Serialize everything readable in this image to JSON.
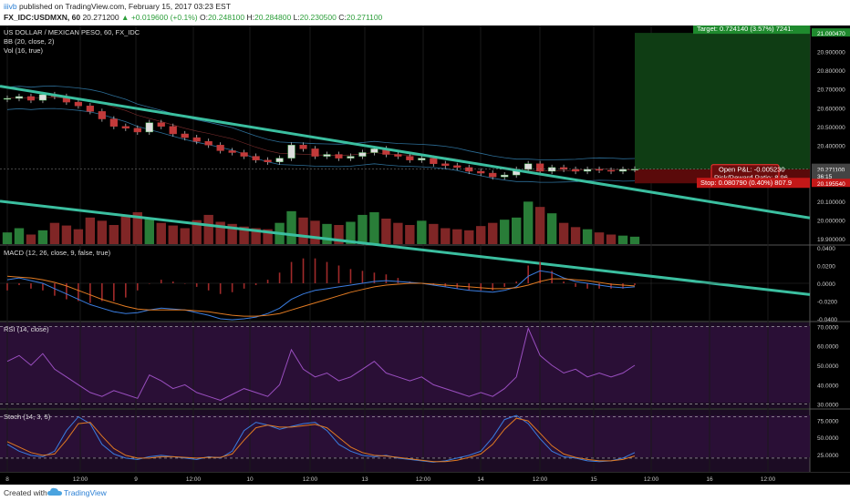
{
  "header": {
    "user": "iiivb",
    "published": "published on TradingView.com, February 15, 2017 03:23 EST",
    "symbol": "FX_IDC:USDMXN, 60",
    "last": "20.271200",
    "arrow": "▲",
    "change": "+0.019600 (+0.1%)",
    "o_label": "O:",
    "o_value": "20.248100",
    "h_label": "H:",
    "h_value": "20.284800",
    "l_label": "L:",
    "l_value": "20.230500",
    "c_label": "C:",
    "c_value": "20.271100"
  },
  "footer": {
    "created": "Created with",
    "brand": "TradingView"
  },
  "colors": {
    "bg": "#000000",
    "grid": "#1a1a1a",
    "bull": "#2e8b3e",
    "bear": "#8e2a2a",
    "trend": "#3bbfa0",
    "bb": "#3e9bd6",
    "macd": "#3a7de0",
    "signal": "#e07a22",
    "rsi": "#9a4fc0",
    "stoch_k": "#3a7de0",
    "stoch_d": "#e07a22",
    "target": "#0f3d14",
    "stop": "#5a0a0a",
    "axis_text": "#cccccc"
  },
  "panes": {
    "main_title": "US DOLLAR / MEXICAN PESO, 60, FX_IDC",
    "bb_label": "BB (20, close, 2)",
    "vol_label": "Vol (16, true)",
    "macd_label": "MACD (12, 26, close, 9, false, true)",
    "rsi_label": "RSI (14, close)",
    "stoch_label": "Stoch (14, 3, 5)"
  },
  "chart_data": {
    "type": "line",
    "x_tick_labels": [
      "8",
      "12:00",
      "9",
      "12:00",
      "10",
      "12:00",
      "13",
      "12:00",
      "14",
      "12:00",
      "15",
      "12:00",
      "16",
      "12:00"
    ],
    "price_axis_ticks": [
      "21.000470",
      "20.900000",
      "20.800000",
      "20.700000",
      "20.600000",
      "20.500000",
      "20.400000",
      "20.276330",
      "20.271100",
      "36:15",
      "20.195540",
      "20.100000",
      "20.000000",
      "19.900000"
    ],
    "macd_axis_ticks": [
      "0.0400",
      "0.0200",
      "0.0000",
      "-0.0200",
      "-0.0400"
    ],
    "rsi_axis_ticks": [
      "70.0000",
      "60.0000",
      "50.0000",
      "40.0000",
      "30.0000"
    ],
    "stoch_axis_ticks": [
      "75.0000",
      "50.0000",
      "25.0000"
    ],
    "price_ylim": [
      19.87,
      21.04
    ],
    "price_close": [
      20.65,
      20.66,
      20.64,
      20.67,
      20.66,
      20.63,
      20.61,
      20.58,
      20.54,
      20.5,
      20.49,
      20.47,
      20.52,
      20.5,
      20.46,
      20.44,
      20.42,
      20.4,
      20.37,
      20.36,
      20.34,
      20.32,
      20.31,
      20.33,
      20.4,
      20.38,
      20.34,
      20.35,
      20.33,
      20.34,
      20.36,
      20.38,
      20.35,
      20.34,
      20.32,
      20.33,
      20.3,
      20.29,
      20.28,
      20.26,
      20.25,
      20.23,
      20.24,
      20.27,
      20.3,
      20.26,
      20.28,
      20.27,
      20.26,
      20.27,
      20.265,
      20.26,
      20.27,
      20.271
    ],
    "volume": [
      22,
      30,
      18,
      26,
      40,
      35,
      28,
      50,
      44,
      36,
      52,
      60,
      48,
      40,
      35,
      30,
      45,
      55,
      42,
      38,
      33,
      30,
      28,
      40,
      62,
      50,
      44,
      38,
      36,
      42,
      55,
      60,
      48,
      40,
      36,
      44,
      38,
      30,
      28,
      26,
      34,
      40,
      46,
      50,
      80,
      70,
      58,
      40,
      32,
      28,
      22,
      18,
      16,
      14
    ],
    "macd": [
      0.004,
      0.006,
      0.003,
      0.0,
      -0.006,
      -0.012,
      -0.018,
      -0.024,
      -0.028,
      -0.032,
      -0.034,
      -0.033,
      -0.03,
      -0.028,
      -0.029,
      -0.03,
      -0.033,
      -0.036,
      -0.04,
      -0.041,
      -0.04,
      -0.038,
      -0.034,
      -0.028,
      -0.018,
      -0.012,
      -0.008,
      -0.006,
      -0.004,
      -0.002,
      0.0,
      0.002,
      0.003,
      0.002,
      0.001,
      0.0,
      -0.002,
      -0.004,
      -0.006,
      -0.008,
      -0.009,
      -0.01,
      -0.008,
      -0.004,
      0.008,
      0.014,
      0.012,
      0.006,
      0.002,
      0.0,
      -0.002,
      -0.004,
      -0.005,
      -0.004
    ],
    "signal": [
      0.008,
      0.007,
      0.006,
      0.004,
      0.001,
      -0.003,
      -0.008,
      -0.013,
      -0.018,
      -0.022,
      -0.026,
      -0.029,
      -0.03,
      -0.03,
      -0.03,
      -0.03,
      -0.031,
      -0.032,
      -0.034,
      -0.036,
      -0.037,
      -0.037,
      -0.036,
      -0.034,
      -0.03,
      -0.026,
      -0.022,
      -0.018,
      -0.014,
      -0.01,
      -0.007,
      -0.004,
      -0.002,
      -0.001,
      0.0,
      0.0,
      -0.001,
      -0.002,
      -0.003,
      -0.004,
      -0.005,
      -0.006,
      -0.006,
      -0.005,
      -0.002,
      0.002,
      0.005,
      0.005,
      0.004,
      0.003,
      0.001,
      -0.001,
      -0.002,
      -0.003
    ],
    "rsi": [
      52,
      55,
      50,
      56,
      48,
      44,
      40,
      36,
      34,
      37,
      35,
      33,
      45,
      42,
      38,
      40,
      36,
      34,
      32,
      35,
      38,
      36,
      34,
      40,
      58,
      48,
      44,
      46,
      42,
      44,
      48,
      52,
      46,
      44,
      42,
      44,
      40,
      38,
      36,
      34,
      36,
      34,
      38,
      44,
      69,
      55,
      50,
      46,
      48,
      44,
      46,
      44,
      46,
      50
    ],
    "stoch_k": [
      40,
      30,
      24,
      22,
      30,
      60,
      80,
      70,
      40,
      26,
      20,
      18,
      22,
      24,
      22,
      20,
      18,
      22,
      20,
      30,
      60,
      72,
      68,
      62,
      66,
      70,
      72,
      60,
      40,
      30,
      24,
      22,
      24,
      20,
      18,
      16,
      14,
      16,
      20,
      24,
      30,
      50,
      76,
      82,
      70,
      48,
      30,
      22,
      20,
      16,
      15,
      16,
      20,
      28
    ],
    "stoch_d": [
      44,
      36,
      28,
      24,
      26,
      46,
      70,
      72,
      52,
      34,
      24,
      20,
      20,
      22,
      22,
      21,
      20,
      21,
      21,
      26,
      46,
      64,
      68,
      65,
      65,
      67,
      69,
      64,
      50,
      36,
      28,
      24,
      23,
      21,
      19,
      17,
      15,
      15,
      17,
      21,
      26,
      40,
      62,
      78,
      74,
      56,
      38,
      26,
      21,
      18,
      16,
      16,
      18,
      23
    ]
  },
  "annotations": {
    "target": "Target: 0.724140 (3.57%) 7241.",
    "open_pl": "Open P&L: -0.005230",
    "rr": "Risk/Reward Ratio: 8.96",
    "stop": "Stop: 0.080790 (0.40%) 807.9"
  }
}
